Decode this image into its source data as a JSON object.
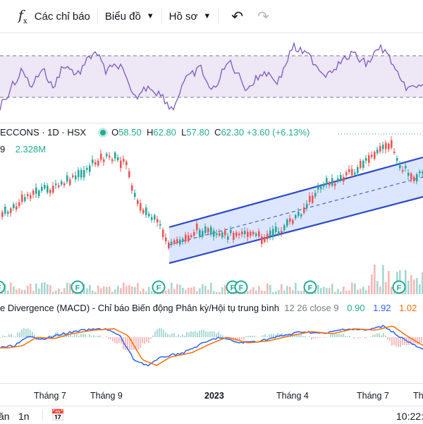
{
  "toolbar": {
    "indicators_label": "Các chỉ báo",
    "chart_type_label": "Biểu đồ",
    "profile_label": "Hồ sơ",
    "undo_icon": "undo-icon",
    "redo_icon": "redo-icon"
  },
  "symbol_legend": {
    "name": "ECCONS · 1D · HSX",
    "open_label": "O",
    "open": "58.50",
    "high_label": "H",
    "high": "62.80",
    "low_label": "L",
    "low": "57.80",
    "close_label": "C",
    "close": "62.30",
    "change": "+3.60 (+6.13%)"
  },
  "volume_legend": {
    "prefix": "9",
    "value": "2.328M"
  },
  "macd_legend": {
    "title": "e Divergence (MACD) - Chỉ báo Biến động Phân kỳ/Hội tụ trung bình",
    "params": "12 26 close 9",
    "hist": "0.90",
    "macd": "1.92",
    "signal": "1.02"
  },
  "x_axis": {
    "labels": [
      "Tháng 7",
      "Tháng 9",
      "2023",
      "Tháng 4",
      "Tháng 7",
      "Th"
    ]
  },
  "bottom_bar": {
    "range_a": "ăn",
    "range_b": "1n",
    "calendar_icon": "calendar-icon",
    "time": "10:22:"
  },
  "event_badge_letter": "F",
  "colors": {
    "up": "#26a69a",
    "down": "#ef5350",
    "rsi_line": "#7e57c2",
    "channel": "#2b4acb",
    "macd": "#2962ff",
    "signal": "#ff6d00"
  }
}
